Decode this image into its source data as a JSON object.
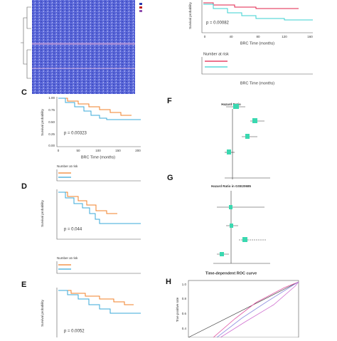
{
  "km_top": {
    "y_label": "Survival probability",
    "p_value": "p = 0.00082",
    "x_ticks": [
      "0",
      "40",
      "80",
      "120",
      "160"
    ],
    "x_label": "BRC Time (months)",
    "risk_title": "Number at risk",
    "risk_x_label": "BRC Time (months)"
  },
  "panel_c": {
    "letter": "C",
    "y_label": "Survival probability",
    "y_ticks": [
      "1.00",
      "0.75",
      "0.50",
      "0.25",
      "0.00"
    ],
    "p_value": "p = 0.00323",
    "x_ticks": [
      "0",
      "50",
      "100",
      "150",
      "200"
    ],
    "x_label": "BRC Time (months)",
    "risk_title": "Number at risk"
  },
  "panel_d": {
    "letter": "D",
    "y_label": "Survival probability",
    "p_value": "p = 0.044",
    "risk_title": "Number at risk"
  },
  "panel_e": {
    "letter": "E",
    "y_label": "Survival probability",
    "p_value": "p = 0.0052"
  },
  "panel_f": {
    "letter": "F",
    "title": "Hazard Ratio"
  },
  "panel_g": {
    "letter": "G",
    "title": "Hazard Ratio in GSE20685"
  },
  "panel_h": {
    "letter": "H",
    "title": "Time-dependent ROC curve",
    "y_label": "True positive rate",
    "y_ticks": [
      "1.0",
      "0.8",
      "0.6",
      "0.4"
    ]
  }
}
